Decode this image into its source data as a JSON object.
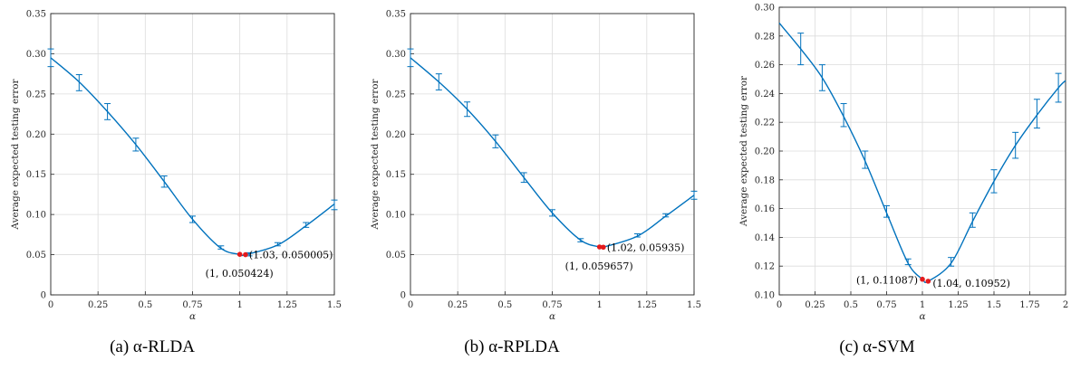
{
  "chart_data": [
    {
      "type": "line",
      "caption": "(a) α-RLDA",
      "xlabel": "α",
      "ylabel": "Average expected testing error",
      "xlim": [
        0,
        1.5
      ],
      "ylim": [
        0,
        0.35
      ],
      "xticks": [
        "0",
        "0.25",
        "0.5",
        "0.75",
        "1",
        "1.25",
        "1.5"
      ],
      "yticks": [
        "0",
        "0.05",
        "0.10",
        "0.15",
        "0.20",
        "0.25",
        "0.30",
        "0.35"
      ],
      "grid": true,
      "curve": {
        "x": [
          0,
          0.15,
          0.3,
          0.45,
          0.6,
          0.75,
          0.9,
          1.0,
          1.03,
          1.2,
          1.35,
          1.5
        ],
        "y": [
          0.295,
          0.265,
          0.228,
          0.187,
          0.141,
          0.094,
          0.058,
          0.0504,
          0.05,
          0.062,
          0.086,
          0.113
        ]
      },
      "errorbars": {
        "x": [
          0,
          0.15,
          0.3,
          0.45,
          0.6,
          0.75,
          0.9,
          1.05,
          1.2,
          1.35,
          1.5
        ],
        "y": [
          0.295,
          0.264,
          0.228,
          0.187,
          0.141,
          0.094,
          0.059,
          0.0505,
          0.063,
          0.087,
          0.112
        ],
        "err": [
          0.011,
          0.01,
          0.01,
          0.008,
          0.007,
          0.004,
          0.002,
          0.002,
          0.002,
          0.003,
          0.006
        ]
      },
      "points": [
        {
          "x": 1.0,
          "y": 0.050424,
          "label": "(1, 0.050424)"
        },
        {
          "x": 1.03,
          "y": 0.050005,
          "label": "(1.03, 0.050005)"
        }
      ]
    },
    {
      "type": "line",
      "caption": "(b) α-RPLDA",
      "xlabel": "α",
      "ylabel": "Average expected testing error",
      "xlim": [
        0,
        1.5
      ],
      "ylim": [
        0,
        0.35
      ],
      "xticks": [
        "0",
        "0.25",
        "0.5",
        "0.75",
        "1",
        "1.25",
        "1.5"
      ],
      "yticks": [
        "0",
        "0.05",
        "0.10",
        "0.15",
        "0.20",
        "0.25",
        "0.30",
        "0.35"
      ],
      "grid": true,
      "curve": {
        "x": [
          0,
          0.15,
          0.3,
          0.45,
          0.6,
          0.75,
          0.9,
          1.0,
          1.02,
          1.2,
          1.35,
          1.5
        ],
        "y": [
          0.295,
          0.265,
          0.231,
          0.191,
          0.146,
          0.102,
          0.068,
          0.0597,
          0.0594,
          0.073,
          0.098,
          0.124
        ]
      },
      "errorbars": {
        "x": [
          0,
          0.15,
          0.3,
          0.45,
          0.6,
          0.75,
          0.9,
          1.2,
          1.35,
          1.5
        ],
        "y": [
          0.295,
          0.265,
          0.231,
          0.191,
          0.146,
          0.102,
          0.068,
          0.074,
          0.099,
          0.124
        ],
        "err": [
          0.011,
          0.01,
          0.009,
          0.008,
          0.006,
          0.004,
          0.002,
          0.002,
          0.002,
          0.005
        ]
      },
      "points": [
        {
          "x": 1.0,
          "y": 0.059657,
          "label": "(1, 0.059657)"
        },
        {
          "x": 1.02,
          "y": 0.05935,
          "label": "(1.02, 0.05935)"
        }
      ]
    },
    {
      "type": "line",
      "caption": "(c) α-SVM",
      "xlabel": "α",
      "ylabel": "Average expected testing error",
      "xlim": [
        0,
        2
      ],
      "ylim": [
        0.1,
        0.3
      ],
      "xticks": [
        "0",
        "0.25",
        "0.5",
        "0.75",
        "1",
        "1.25",
        "1.5",
        "1.75",
        "2"
      ],
      "yticks": [
        "0.10",
        "0.12",
        "0.14",
        "0.16",
        "0.18",
        "0.20",
        "0.22",
        "0.24",
        "0.26",
        "0.28",
        "0.30"
      ],
      "grid": true,
      "curve": {
        "x": [
          0,
          0.15,
          0.3,
          0.45,
          0.6,
          0.75,
          0.9,
          1.0,
          1.04,
          1.2,
          1.35,
          1.5,
          1.65,
          1.8,
          1.95,
          2.0
        ],
        "y": [
          0.289,
          0.271,
          0.251,
          0.224,
          0.193,
          0.157,
          0.122,
          0.1109,
          0.1095,
          0.122,
          0.151,
          0.179,
          0.204,
          0.225,
          0.244,
          0.249
        ]
      },
      "errorbars": {
        "x": [
          0.15,
          0.3,
          0.45,
          0.6,
          0.75,
          0.9,
          1.2,
          1.35,
          1.5,
          1.65,
          1.8,
          1.95
        ],
        "y": [
          0.271,
          0.251,
          0.225,
          0.194,
          0.158,
          0.123,
          0.123,
          0.152,
          0.179,
          0.204,
          0.226,
          0.244
        ],
        "err": [
          0.011,
          0.009,
          0.008,
          0.006,
          0.004,
          0.002,
          0.003,
          0.005,
          0.008,
          0.009,
          0.01,
          0.01
        ]
      },
      "points": [
        {
          "x": 1.0,
          "y": 0.11087,
          "label": "(1, 0.11087)"
        },
        {
          "x": 1.04,
          "y": 0.10952,
          "label": "(1.04, 0.10952)"
        }
      ]
    }
  ]
}
